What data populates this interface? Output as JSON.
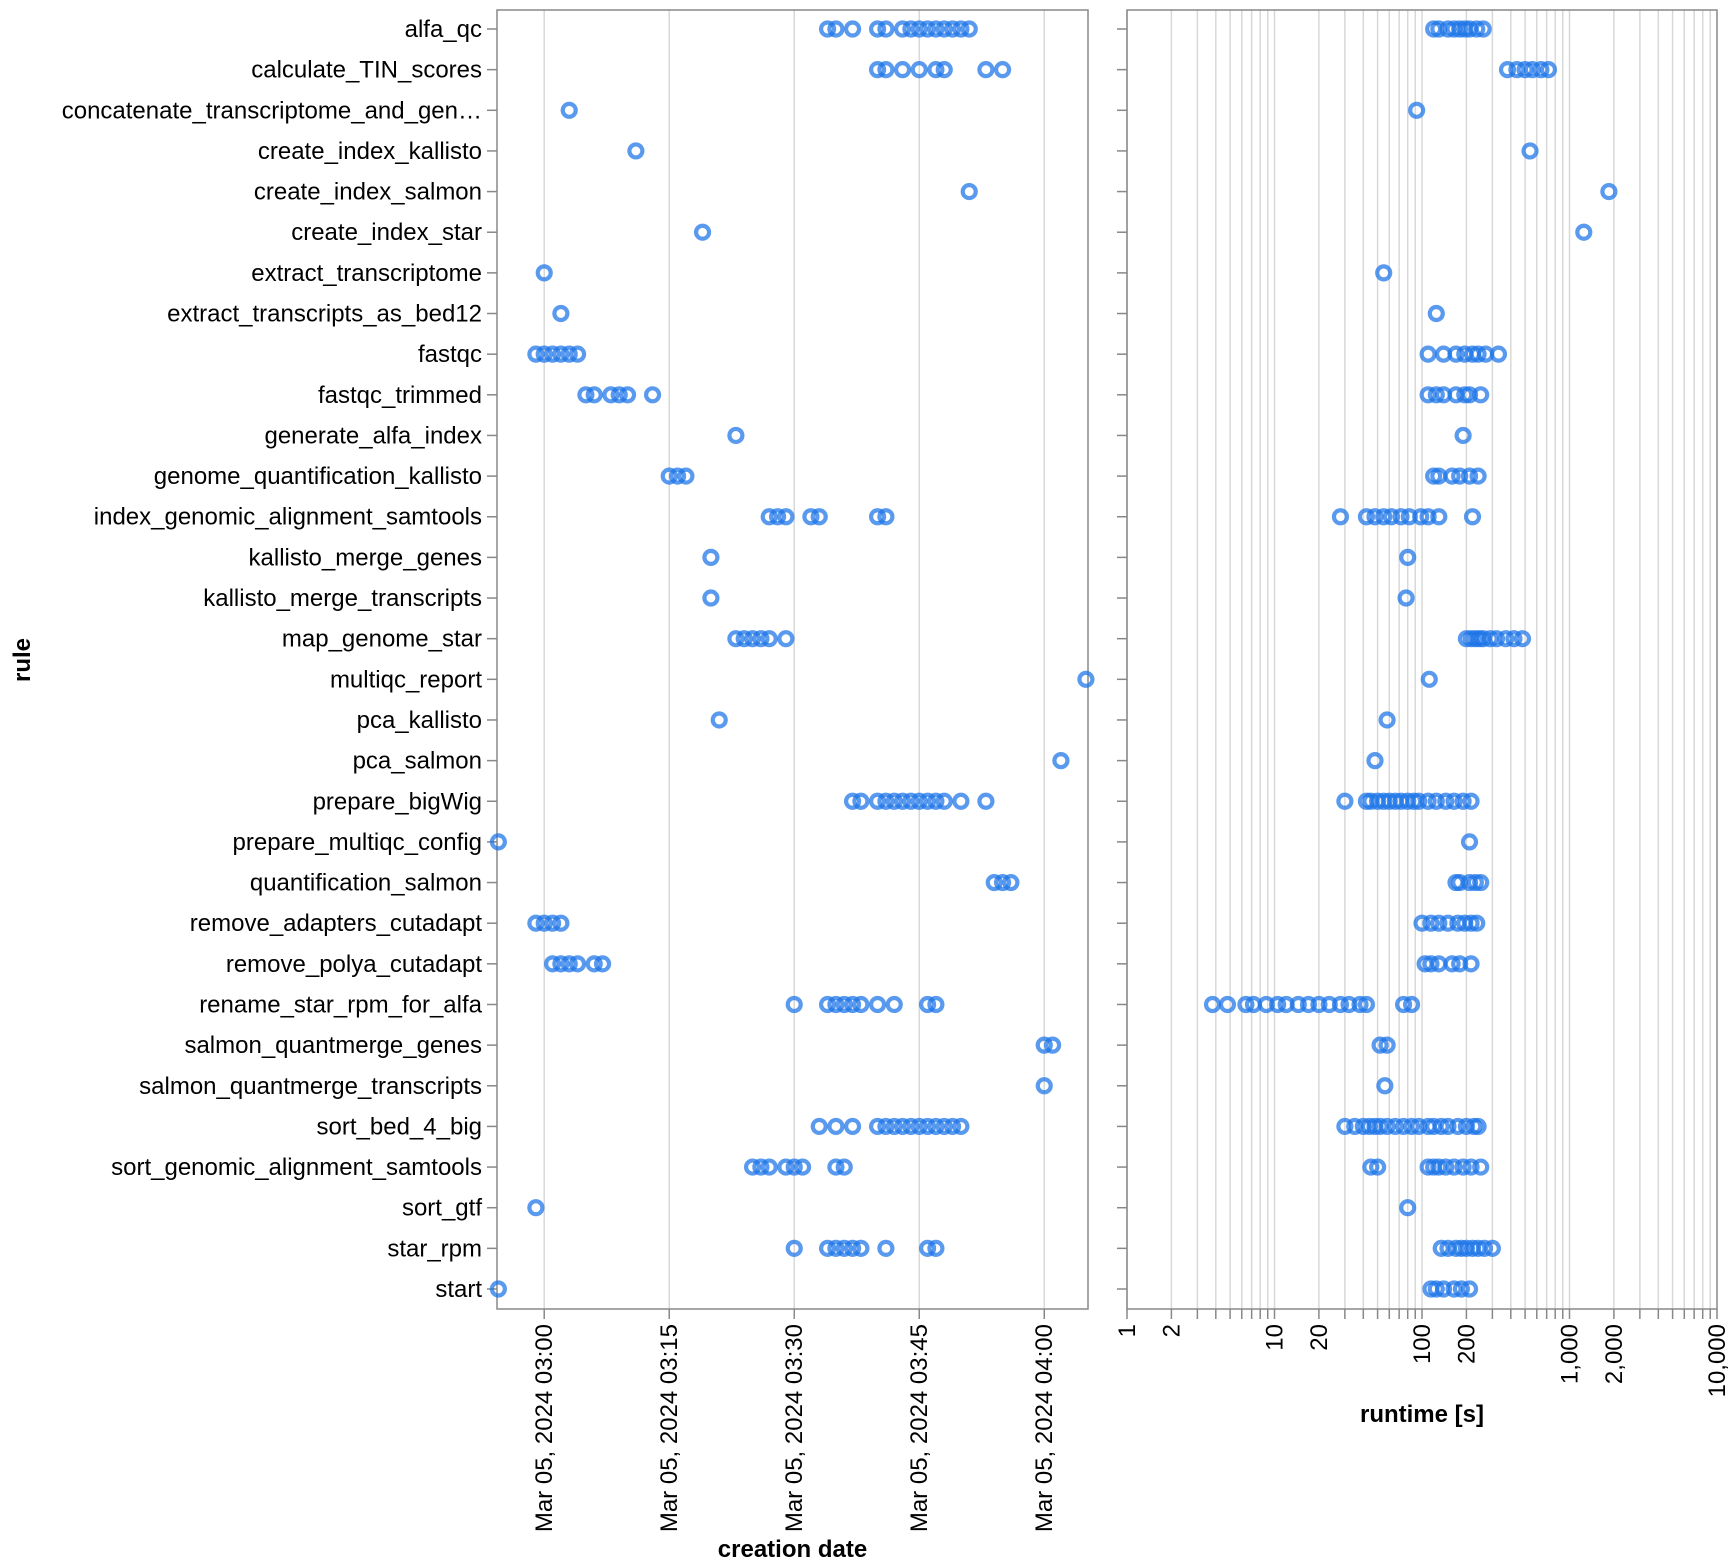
{
  "colors": {
    "mark": "#1a73e8",
    "grid": "#d8d8d8",
    "axis": "#888888"
  },
  "chart_data": {
    "type": "scatter",
    "rules": [
      "alfa_qc",
      "calculate_TIN_scores",
      "concatenate_transcriptome_and_gen…",
      "create_index_kallisto",
      "create_index_salmon",
      "create_index_star",
      "extract_transcriptome",
      "extract_transcripts_as_bed12",
      "fastqc",
      "fastqc_trimmed",
      "generate_alfa_index",
      "genome_quantification_kallisto",
      "index_genomic_alignment_samtools",
      "kallisto_merge_genes",
      "kallisto_merge_transcripts",
      "map_genome_star",
      "multiqc_report",
      "pca_kallisto",
      "pca_salmon",
      "prepare_bigWig",
      "prepare_multiqc_config",
      "quantification_salmon",
      "remove_adapters_cutadapt",
      "remove_polya_cutadapt",
      "rename_star_rpm_for_alfa",
      "salmon_quantmerge_genes",
      "salmon_quantmerge_transcripts",
      "sort_bed_4_big",
      "sort_genomic_alignment_samtools",
      "sort_gtf",
      "star_rpm",
      "start"
    ],
    "y_title": "rule",
    "left": {
      "title": "creation date",
      "xlim": [
        "2024-03-05T02:54:20",
        "2024-03-05T04:05:15"
      ],
      "ticks": [
        {
          "value": "2024-03-05T03:00:00",
          "label": "Mar 05, 2024 03:00"
        },
        {
          "value": "2024-03-05T03:15:00",
          "label": "Mar 05, 2024 03:15"
        },
        {
          "value": "2024-03-05T03:30:00",
          "label": "Mar 05, 2024 03:30"
        },
        {
          "value": "2024-03-05T03:45:00",
          "label": "Mar 05, 2024 03:45"
        },
        {
          "value": "2024-03-05T04:00:00",
          "label": "Mar 05, 2024 04:00"
        }
      ],
      "points": [
        [
          "2024-03-05T03:34:00",
          "2024-03-05T03:35:00",
          "2024-03-05T03:37:00",
          "2024-03-05T03:40:00",
          "2024-03-05T03:41:00",
          "2024-03-05T03:43:00",
          "2024-03-05T03:44:00",
          "2024-03-05T03:45:00",
          "2024-03-05T03:46:00",
          "2024-03-05T03:47:00",
          "2024-03-05T03:48:00",
          "2024-03-05T03:49:00",
          "2024-03-05T03:50:00",
          "2024-03-05T03:51:00"
        ],
        [
          "2024-03-05T03:40:00",
          "2024-03-05T03:41:00",
          "2024-03-05T03:43:00",
          "2024-03-05T03:45:00",
          "2024-03-05T03:47:00",
          "2024-03-05T03:48:00",
          "2024-03-05T03:53:00",
          "2024-03-05T03:55:00"
        ],
        [
          "2024-03-05T03:03:00"
        ],
        [
          "2024-03-05T03:11:00"
        ],
        [
          "2024-03-05T03:51:00"
        ],
        [
          "2024-03-05T03:19:00"
        ],
        [
          "2024-03-05T03:00:00"
        ],
        [
          "2024-03-05T03:02:00"
        ],
        [
          "2024-03-05T02:59:00",
          "2024-03-05T03:00:00",
          "2024-03-05T03:01:00",
          "2024-03-05T03:02:00",
          "2024-03-05T03:03:00",
          "2024-03-05T03:04:00"
        ],
        [
          "2024-03-05T03:05:00",
          "2024-03-05T03:06:00",
          "2024-03-05T03:08:00",
          "2024-03-05T03:09:00",
          "2024-03-05T03:10:00",
          "2024-03-05T03:13:00"
        ],
        [
          "2024-03-05T03:23:00"
        ],
        [
          "2024-03-05T03:15:00",
          "2024-03-05T03:16:00",
          "2024-03-05T03:17:00"
        ],
        [
          "2024-03-05T03:27:00",
          "2024-03-05T03:28:00",
          "2024-03-05T03:29:00",
          "2024-03-05T03:32:00",
          "2024-03-05T03:33:00",
          "2024-03-05T03:40:00",
          "2024-03-05T03:41:00"
        ],
        [
          "2024-03-05T03:20:00"
        ],
        [
          "2024-03-05T03:20:00"
        ],
        [
          "2024-03-05T03:23:00",
          "2024-03-05T03:24:00",
          "2024-03-05T03:25:00",
          "2024-03-05T03:26:00",
          "2024-03-05T03:27:00",
          "2024-03-05T03:29:00"
        ],
        [
          "2024-03-05T04:05:00"
        ],
        [
          "2024-03-05T03:21:00"
        ],
        [
          "2024-03-05T04:02:00"
        ],
        [
          "2024-03-05T03:37:00",
          "2024-03-05T03:38:00",
          "2024-03-05T03:40:00",
          "2024-03-05T03:41:00",
          "2024-03-05T03:42:00",
          "2024-03-05T03:43:00",
          "2024-03-05T03:44:00",
          "2024-03-05T03:45:00",
          "2024-03-05T03:46:00",
          "2024-03-05T03:47:00",
          "2024-03-05T03:48:00",
          "2024-03-05T03:50:00",
          "2024-03-05T03:53:00"
        ],
        [
          "2024-03-05T02:54:30"
        ],
        [
          "2024-03-05T03:54:00",
          "2024-03-05T03:55:00",
          "2024-03-05T03:56:00"
        ],
        [
          "2024-03-05T02:59:00",
          "2024-03-05T03:00:00",
          "2024-03-05T03:01:00",
          "2024-03-05T03:02:00"
        ],
        [
          "2024-03-05T03:01:00",
          "2024-03-05T03:02:00",
          "2024-03-05T03:03:00",
          "2024-03-05T03:04:00",
          "2024-03-05T03:06:00",
          "2024-03-05T03:07:00"
        ],
        [
          "2024-03-05T03:30:00",
          "2024-03-05T03:34:00",
          "2024-03-05T03:35:00",
          "2024-03-05T03:36:00",
          "2024-03-05T03:37:00",
          "2024-03-05T03:38:00",
          "2024-03-05T03:40:00",
          "2024-03-05T03:42:00",
          "2024-03-05T03:46:00",
          "2024-03-05T03:47:00"
        ],
        [
          "2024-03-05T04:00:00",
          "2024-03-05T04:01:00"
        ],
        [
          "2024-03-05T04:00:00"
        ],
        [
          "2024-03-05T03:33:00",
          "2024-03-05T03:35:00",
          "2024-03-05T03:37:00",
          "2024-03-05T03:40:00",
          "2024-03-05T03:41:00",
          "2024-03-05T03:42:00",
          "2024-03-05T03:43:00",
          "2024-03-05T03:44:00",
          "2024-03-05T03:45:00",
          "2024-03-05T03:46:00",
          "2024-03-05T03:47:00",
          "2024-03-05T03:48:00",
          "2024-03-05T03:49:00",
          "2024-03-05T03:50:00"
        ],
        [
          "2024-03-05T03:25:00",
          "2024-03-05T03:26:00",
          "2024-03-05T03:27:00",
          "2024-03-05T03:29:00",
          "2024-03-05T03:30:00",
          "2024-03-05T03:31:00",
          "2024-03-05T03:35:00",
          "2024-03-05T03:36:00"
        ],
        [
          "2024-03-05T02:59:00"
        ],
        [
          "2024-03-05T03:30:00",
          "2024-03-05T03:34:00",
          "2024-03-05T03:35:00",
          "2024-03-05T03:36:00",
          "2024-03-05T03:37:00",
          "2024-03-05T03:38:00",
          "2024-03-05T03:41:00",
          "2024-03-05T03:46:00",
          "2024-03-05T03:47:00"
        ],
        [
          "2024-03-05T02:54:30"
        ]
      ]
    },
    "right": {
      "title": "runtime [s]",
      "scale": "log",
      "xlim": [
        1,
        10000
      ],
      "ticks": [
        {
          "value": 1,
          "label": "1"
        },
        {
          "value": 2,
          "label": "2"
        },
        {
          "value": 10,
          "label": "10"
        },
        {
          "value": 20,
          "label": "20"
        },
        {
          "value": 100,
          "label": "100"
        },
        {
          "value": 200,
          "label": "200"
        },
        {
          "value": 1000,
          "label": "1,000"
        },
        {
          "value": 2000,
          "label": "2,000"
        },
        {
          "value": 10000,
          "label": "10,000"
        }
      ],
      "points": [
        [
          120,
          130,
          150,
          165,
          180,
          195,
          210,
          235,
          260
        ],
        [
          380,
          440,
          500,
          560,
          640,
          720
        ],
        [
          92
        ],
        [
          540
        ],
        [
          1850
        ],
        [
          1250
        ],
        [
          55
        ],
        [
          125
        ],
        [
          110,
          140,
          170,
          195,
          220,
          240,
          270,
          330
        ],
        [
          110,
          125,
          140,
          170,
          195,
          210,
          250
        ],
        [
          190
        ],
        [
          120,
          130,
          160,
          180,
          210,
          240
        ],
        [
          28,
          42,
          48,
          55,
          62,
          72,
          82,
          98,
          110,
          130,
          220
        ],
        [
          80
        ],
        [
          78
        ],
        [
          200,
          215,
          230,
          245,
          260,
          290,
          320,
          370,
          420,
          480
        ],
        [
          112
        ],
        [
          58
        ],
        [
          48
        ],
        [
          30,
          42,
          45,
          50,
          55,
          60,
          66,
          72,
          80,
          88,
          95,
          110,
          125,
          145,
          165,
          190,
          215
        ],
        [
          210
        ],
        [
          170,
          180,
          210,
          230,
          250
        ],
        [
          100,
          115,
          130,
          150,
          175,
          195,
          215,
          235
        ],
        [
          105,
          115,
          130,
          160,
          180,
          215
        ],
        [
          3.8,
          4.8,
          6.4,
          7.2,
          8.8,
          10.5,
          12,
          14.5,
          17,
          20,
          23.5,
          28,
          32,
          38,
          42,
          75,
          85
        ],
        [
          52,
          58
        ],
        [
          56
        ],
        [
          30,
          35,
          40,
          44,
          48,
          52,
          58,
          66,
          75,
          85,
          95,
          110,
          120,
          135,
          150,
          175,
          200,
          225,
          240
        ],
        [
          45,
          50,
          110,
          120,
          130,
          145,
          165,
          190,
          215,
          250
        ],
        [
          80
        ],
        [
          135,
          150,
          170,
          185,
          200,
          220,
          240,
          265,
          300
        ],
        [
          115,
          125,
          140,
          165,
          185,
          210
        ]
      ]
    }
  }
}
